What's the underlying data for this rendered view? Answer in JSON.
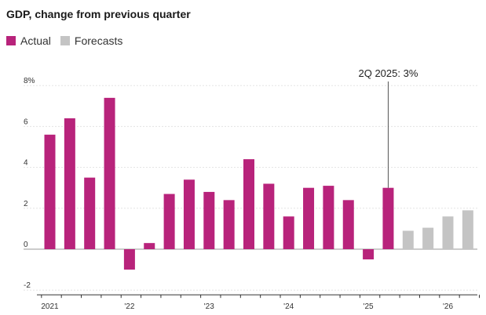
{
  "chart_data": {
    "type": "bar",
    "title": "GDP, change from previous quarter",
    "legend": [
      {
        "name": "Actual",
        "color": "#b8237b"
      },
      {
        "name": "Forecasts",
        "color": "#c4c4c4"
      }
    ],
    "ylim": [
      -2,
      8
    ],
    "y_ticks": [
      {
        "value": 8,
        "label": "8%"
      },
      {
        "value": 6,
        "label": "6"
      },
      {
        "value": 4,
        "label": "4"
      },
      {
        "value": 2,
        "label": "2"
      },
      {
        "value": 0,
        "label": "0"
      },
      {
        "value": -2,
        "label": "-2"
      }
    ],
    "x_ticks": [
      {
        "index": 0,
        "label": "2021"
      },
      {
        "index": 4,
        "label": "'22"
      },
      {
        "index": 8,
        "label": "'23"
      },
      {
        "index": 12,
        "label": "'24"
      },
      {
        "index": 16,
        "label": "'25"
      },
      {
        "index": 20,
        "label": "'26"
      }
    ],
    "series": [
      {
        "name": "Actual",
        "color": "#b8237b",
        "values": [
          5.6,
          6.4,
          3.5,
          7.4,
          -1.0,
          0.3,
          2.7,
          3.4,
          2.8,
          2.4,
          4.4,
          3.2,
          1.6,
          3.0,
          3.1,
          2.4,
          -0.5,
          3.0,
          null,
          null,
          null,
          null
        ]
      },
      {
        "name": "Forecasts",
        "color": "#c4c4c4",
        "values": [
          null,
          null,
          null,
          null,
          null,
          null,
          null,
          null,
          null,
          null,
          null,
          null,
          null,
          null,
          null,
          null,
          null,
          null,
          0.9,
          1.05,
          1.6,
          1.9
        ]
      }
    ],
    "annotation": {
      "index": 17,
      "label": "2Q 2025: 3%"
    },
    "grid": true
  }
}
